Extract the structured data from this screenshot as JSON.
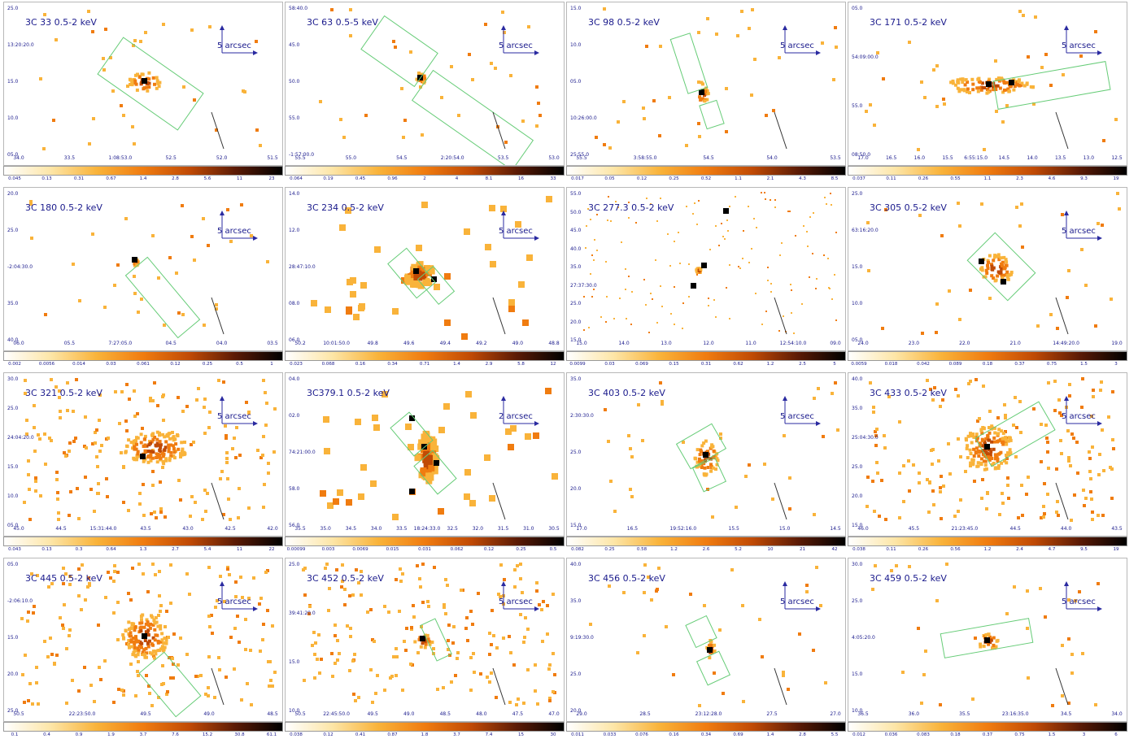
{
  "colors": {
    "frame_border": "#b8b8b8",
    "text": "#1a1a8c",
    "region": "#66cc77",
    "colormap": [
      "#ffffff",
      "#fde6a8",
      "#f9b33a",
      "#f07c10",
      "#c04a05",
      "#5a1a05",
      "#000000"
    ]
  },
  "panels": [
    {
      "title": "3C 33 0.5-2 keV",
      "scale_label": "5 arcsec",
      "y_ticks": [
        "25.0",
        "13:20:20.0",
        "15.0",
        "10.0",
        "05.0"
      ],
      "x_ticks": [
        "34.0",
        "33.5",
        "1:08:53.0",
        "52.5",
        "52.0",
        "51.5"
      ],
      "cbar_ticks": [
        "0.045",
        "0.13",
        "0.31",
        "0.67",
        "1.4",
        "2.8",
        "5.6",
        "11",
        "23"
      ]
    },
    {
      "title": "3C 63 0.5-5 keV",
      "scale_label": "5 arcsec",
      "y_ticks": [
        "58:40.0",
        "45.0",
        "50.0",
        "55.0",
        "-1:57:00.0"
      ],
      "x_ticks": [
        "55.5",
        "55.0",
        "54.5",
        "2:20:54.0",
        "53.5",
        "53.0"
      ],
      "cbar_ticks": [
        "0.064",
        "0.19",
        "0.45",
        "0.96",
        "2",
        "4",
        "8.1",
        "16",
        "33"
      ]
    },
    {
      "title": "3C 98 0.5-2 keV",
      "scale_label": "5 arcsec",
      "y_ticks": [
        "15.0",
        "10.0",
        "05.0",
        "10:26:00.0",
        "25:55.0"
      ],
      "x_ticks": [
        "55.5",
        "3:58:55.0",
        "54.5",
        "54.0",
        "53.5"
      ],
      "cbar_ticks": [
        "0.017",
        "0.05",
        "0.12",
        "0.25",
        "0.52",
        "1.1",
        "2.1",
        "4.3",
        "8.5"
      ]
    },
    {
      "title": "3C 171 0.5-2 keV",
      "scale_label": "5 arcsec",
      "y_ticks": [
        "05.0",
        "54:09:00.0",
        "55.0",
        "08:50.0"
      ],
      "x_ticks": [
        "17.0",
        "16.5",
        "16.0",
        "15.5",
        "6:55:15.0",
        "14.5",
        "14.0",
        "13.5",
        "13.0",
        "12.5"
      ],
      "cbar_ticks": [
        "0.037",
        "0.11",
        "0.26",
        "0.55",
        "1.1",
        "2.3",
        "4.6",
        "9.3",
        "19"
      ]
    },
    {
      "title": "3C 180 0.5-2 keV",
      "scale_label": "5 arcsec",
      "y_ticks": [
        "20.0",
        "25.0",
        "-2:04:30.0",
        "35.0",
        "40.0"
      ],
      "x_ticks": [
        "06.0",
        "05.5",
        "7:27:05.0",
        "04.5",
        "04.0",
        "03.5"
      ],
      "cbar_ticks": [
        "0.002",
        "0.0056",
        "0.014",
        "0.03",
        "0.061",
        "0.12",
        "0.25",
        "0.5",
        "1"
      ]
    },
    {
      "title": "3C 234 0.5-2 keV",
      "scale_label": "5 arcsec",
      "y_ticks": [
        "14.0",
        "12.0",
        "28:47:10.0",
        "08.0",
        "06.0"
      ],
      "x_ticks": [
        "50.2",
        "10:01:50.0",
        "49.8",
        "49.6",
        "49.4",
        "49.2",
        "49.0",
        "48.8"
      ],
      "cbar_ticks": [
        "0.023",
        "0.068",
        "0.16",
        "0.34",
        "0.71",
        "1.4",
        "2.9",
        "5.8",
        "12"
      ]
    },
    {
      "title": "3C 277.3 0.5-2 keV",
      "scale_label": "",
      "y_ticks": [
        "55.0",
        "50.0",
        "45.0",
        "40.0",
        "35.0",
        "27:37:30.0",
        "25.0",
        "20.0",
        "15.0"
      ],
      "x_ticks": [
        "15.0",
        "14.0",
        "13.0",
        "12.0",
        "11.0",
        "12:54:10.0",
        "09.0"
      ],
      "cbar_ticks": [
        "0.0099",
        "0.03",
        "0.069",
        "0.15",
        "0.31",
        "0.62",
        "1.2",
        "2.5",
        "5"
      ]
    },
    {
      "title": "3C 305 0.5-2 keV",
      "scale_label": "5 arcsec",
      "y_ticks": [
        "25.0",
        "63:16:20.0",
        "15.0",
        "10.0",
        "05.0"
      ],
      "x_ticks": [
        "24.0",
        "23.0",
        "22.0",
        "21.0",
        "14:49:20.0",
        "19.0"
      ],
      "cbar_ticks": [
        "0.0059",
        "0.018",
        "0.042",
        "0.089",
        "0.18",
        "0.37",
        "0.75",
        "1.5",
        "3"
      ]
    },
    {
      "title": "3C 321 0.5-2 keV",
      "scale_label": "5 arcsec",
      "y_ticks": [
        "30.0",
        "25.0",
        "24:04:20.0",
        "15.0",
        "10.0",
        "05.0"
      ],
      "x_ticks": [
        "45.0",
        "44.5",
        "15:31:44.0",
        "43.5",
        "43.0",
        "42.5",
        "42.0"
      ],
      "cbar_ticks": [
        "0.043",
        "0.13",
        "0.3",
        "0.64",
        "1.3",
        "2.7",
        "5.4",
        "11",
        "22"
      ]
    },
    {
      "title": "3C379.1 0.5-2 keV",
      "scale_label": "2 arcsec",
      "y_ticks": [
        "04.0",
        "02.0",
        "74:21:00.0",
        "58.0",
        "56.0"
      ],
      "x_ticks": [
        "35.5",
        "35.0",
        "34.5",
        "34.0",
        "33.5",
        "18:24:33.0",
        "32.5",
        "32.0",
        "31.5",
        "31.0",
        "30.5"
      ],
      "cbar_ticks": [
        "0.00099",
        "0.003",
        "0.0069",
        "0.015",
        "0.031",
        "0.062",
        "0.12",
        "0.25",
        "0.5"
      ]
    },
    {
      "title": "3C 403 0.5-2 keV",
      "scale_label": "5 arcsec",
      "y_ticks": [
        "35.0",
        "2:30:30.0",
        "25.0",
        "20.0",
        "15.0"
      ],
      "x_ticks": [
        "17.0",
        "16.5",
        "19:52:16.0",
        "15.5",
        "15.0",
        "14.5"
      ],
      "cbar_ticks": [
        "0.082",
        "0.25",
        "0.58",
        "1.2",
        "2.6",
        "5.2",
        "10",
        "21",
        "42"
      ]
    },
    {
      "title": "3C 433 0.5-2 keV",
      "scale_label": "5 arcsec",
      "y_ticks": [
        "40.0",
        "35.0",
        "25:04:30.0",
        "25.0",
        "20.0",
        "15.0"
      ],
      "x_ticks": [
        "46.0",
        "45.5",
        "21:23:45.0",
        "44.5",
        "44.0",
        "43.5"
      ],
      "cbar_ticks": [
        "0.038",
        "0.11",
        "0.26",
        "0.56",
        "1.2",
        "2.4",
        "4.7",
        "9.5",
        "19"
      ]
    },
    {
      "title": "3C 445 0.5-2 keV",
      "scale_label": "5 arcsec",
      "y_ticks": [
        "05.0",
        "-2:06:10.0",
        "15.0",
        "20.0",
        "25.0"
      ],
      "x_ticks": [
        "50.5",
        "22:23:50.0",
        "49.5",
        "49.0",
        "48.5"
      ],
      "cbar_ticks": [
        "0.1",
        "0.4",
        "0.9",
        "1.9",
        "3.7",
        "7.6",
        "15.2",
        "30.8",
        "61.1"
      ]
    },
    {
      "title": "3C 452 0.5-2 keV",
      "scale_label": "5 arcsec",
      "y_ticks": [
        "25.0",
        "39:41:20.0",
        "15.0",
        "10.0"
      ],
      "x_ticks": [
        "50.5",
        "22:45:50.0",
        "49.5",
        "49.0",
        "48.5",
        "48.0",
        "47.5",
        "47.0"
      ],
      "cbar_ticks": [
        "0.038",
        "0.12",
        "0.41",
        "0.87",
        "1.8",
        "3.7",
        "7.4",
        "15",
        "30"
      ]
    },
    {
      "title": "3C 456 0.5-2 keV",
      "scale_label": "5 arcsec",
      "y_ticks": [
        "40.0",
        "35.0",
        "9:19:30.0",
        "25.0",
        "20.0"
      ],
      "x_ticks": [
        "29.0",
        "28.5",
        "23:12:28.0",
        "27.5",
        "27.0"
      ],
      "cbar_ticks": [
        "0.011",
        "0.033",
        "0.076",
        "0.16",
        "0.34",
        "0.69",
        "1.4",
        "2.8",
        "5.5"
      ]
    },
    {
      "title": "3C 459 0.5-2 keV",
      "scale_label": "5 arcsec",
      "y_ticks": [
        "30.0",
        "25.0",
        "4:05:20.0",
        "15.0",
        "10.0"
      ],
      "x_ticks": [
        "36.5",
        "36.0",
        "35.5",
        "23:16:35.0",
        "34.5",
        "34.0"
      ],
      "cbar_ticks": [
        "0.012",
        "0.036",
        "0.083",
        "0.18",
        "0.37",
        "0.75",
        "1.5",
        "3",
        "6"
      ]
    }
  ]
}
